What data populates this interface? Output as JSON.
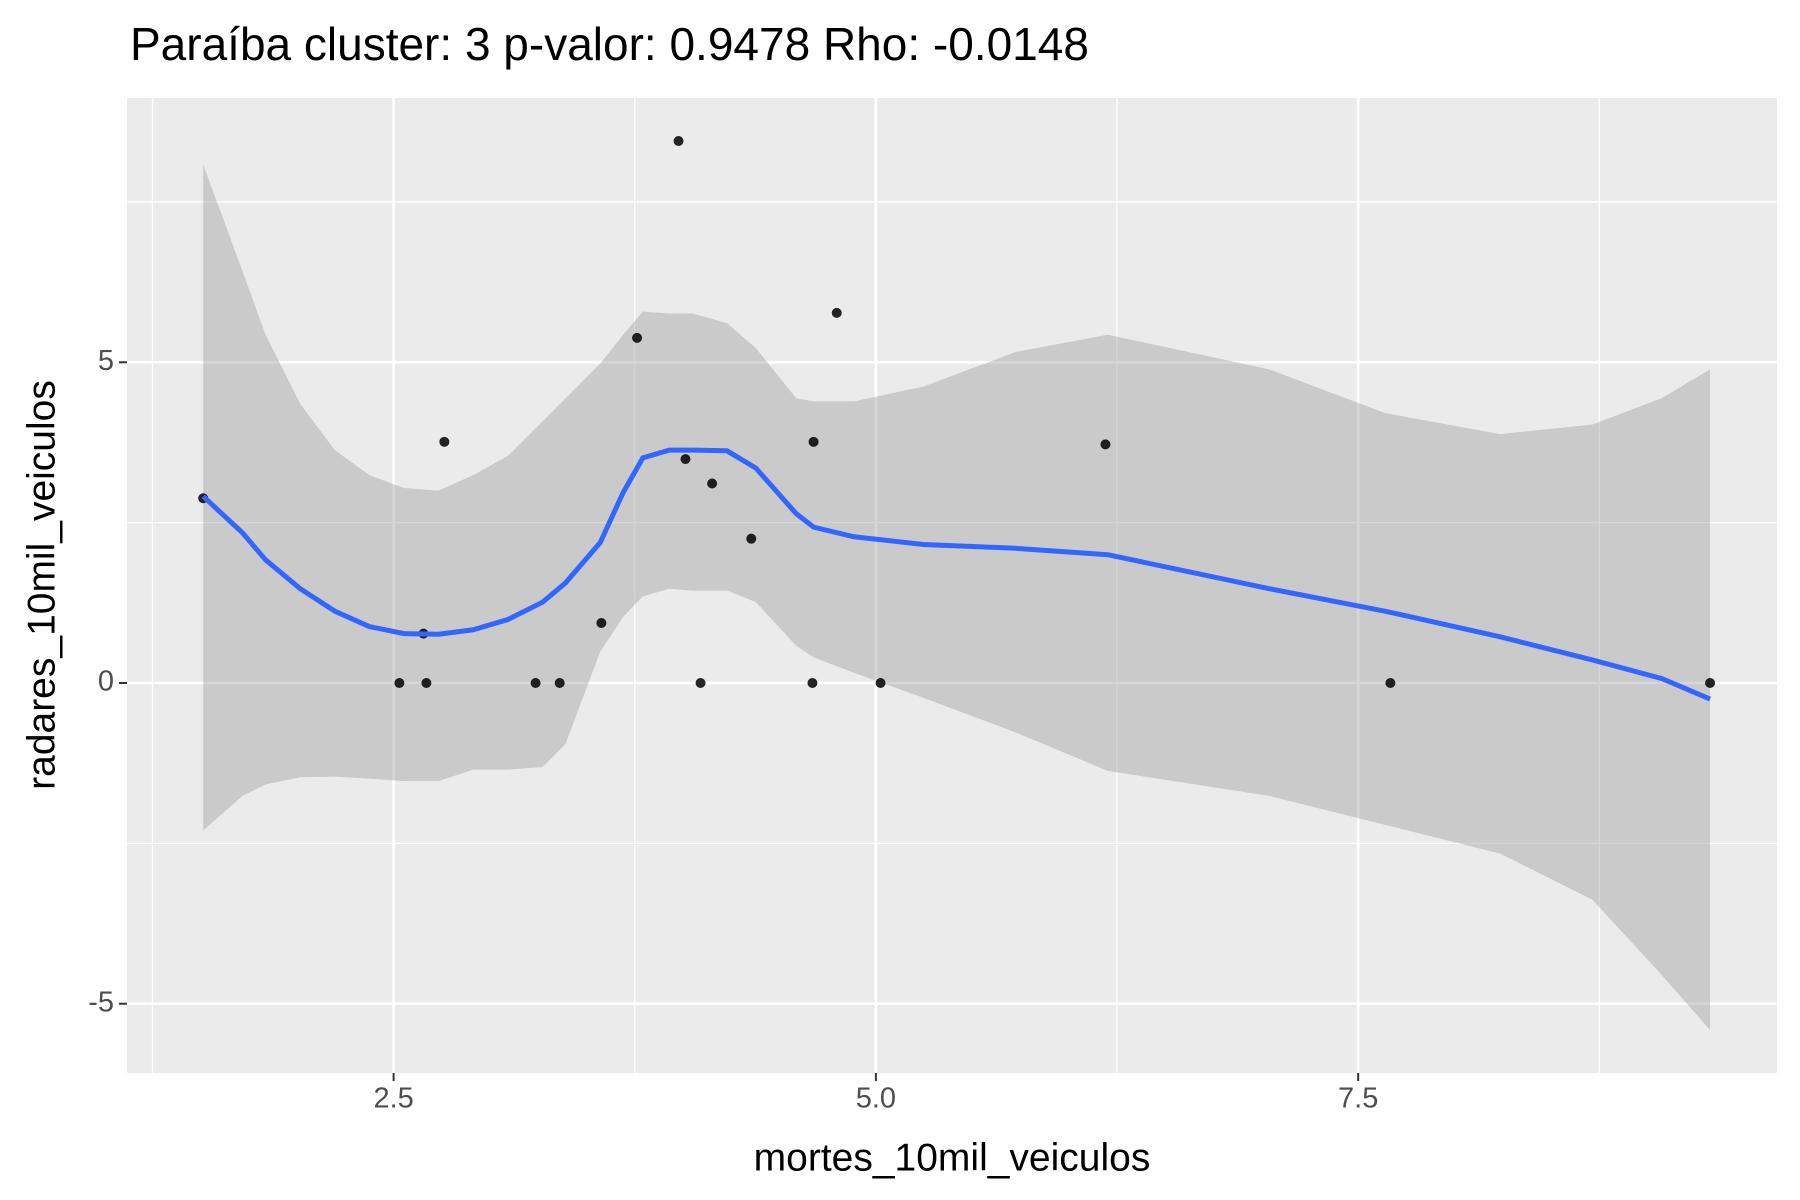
{
  "chart_data": {
    "type": "scatter",
    "title": "Paraíba cluster: 3 p-valor: 0.9478 Rho: -0.0148",
    "x_label": "mortes_10mil_veiculos",
    "y_label": "radares_10mil_veiculos",
    "xlim": [
      1.118,
      9.671
    ],
    "ylim": [
      -6.08,
      9.12
    ],
    "xticks": [
      {
        "value": 2.5,
        "label": "2.5"
      },
      {
        "value": 5,
        "label": "5.0"
      },
      {
        "value": 7.5,
        "label": "7.5"
      }
    ],
    "yticks": [
      -5,
      0,
      5
    ],
    "grid": true,
    "series": [
      {
        "color": "#000000",
        "x": [
          1.513,
          2.53,
          2.655,
          2.67,
          2.763,
          3.236,
          3.361,
          3.577,
          3.762,
          3.977,
          4.013,
          4.091,
          4.151,
          4.354,
          4.677,
          4.671,
          4.797,
          5.024,
          6.19,
          7.667,
          9.324
        ],
        "values": [
          2.88,
          0,
          0.77,
          0,
          3.76,
          0,
          0,
          0.935,
          5.38,
          8.45,
          3.49,
          0,
          3.11,
          2.25,
          3.76,
          0,
          5.77,
          0,
          3.72,
          0,
          0
        ]
      }
    ],
    "smooth": {
      "color": "#3366ff",
      "band_color": "#999999",
      "x": [
        1.513,
        1.717,
        1.836,
        2.016,
        2.195,
        2.374,
        2.554,
        2.733,
        2.913,
        3.092,
        3.272,
        3.391,
        3.571,
        3.69,
        3.792,
        3.929,
        4.049,
        4.228,
        4.378,
        4.587,
        4.677,
        4.886,
        5.245,
        5.724,
        6.202,
        7.039,
        7.638,
        8.236,
        8.714,
        9.073,
        9.324
      ],
      "y": [
        2.91,
        2.34,
        1.92,
        1.47,
        1.12,
        0.88,
        0.77,
        0.76,
        0.83,
        0.99,
        1.26,
        1.56,
        2.19,
        2.97,
        3.51,
        3.63,
        3.63,
        3.62,
        3.35,
        2.64,
        2.43,
        2.28,
        2.16,
        2.1,
        2.0,
        1.47,
        1.12,
        0.72,
        0.36,
        0.07,
        -0.25
      ],
      "ymax": [
        8.08,
        6.42,
        5.43,
        4.35,
        3.63,
        3.24,
        3.04,
        3.0,
        3.24,
        3.54,
        4.08,
        4.44,
        4.98,
        5.43,
        5.79,
        5.76,
        5.76,
        5.61,
        5.22,
        4.44,
        4.39,
        4.39,
        4.62,
        5.16,
        5.43,
        4.89,
        4.21,
        3.88,
        4.03,
        4.44,
        4.89
      ],
      "ymin": [
        -2.3,
        -1.76,
        -1.58,
        -1.47,
        -1.46,
        -1.49,
        -1.53,
        -1.53,
        -1.35,
        -1.35,
        -1.31,
        -0.95,
        0.49,
        1.03,
        1.35,
        1.47,
        1.44,
        1.44,
        1.26,
        0.58,
        0.4,
        0.16,
        -0.23,
        -0.77,
        -1.37,
        -1.76,
        -2.21,
        -2.66,
        -3.38,
        -4.55,
        -5.41
      ]
    }
  }
}
